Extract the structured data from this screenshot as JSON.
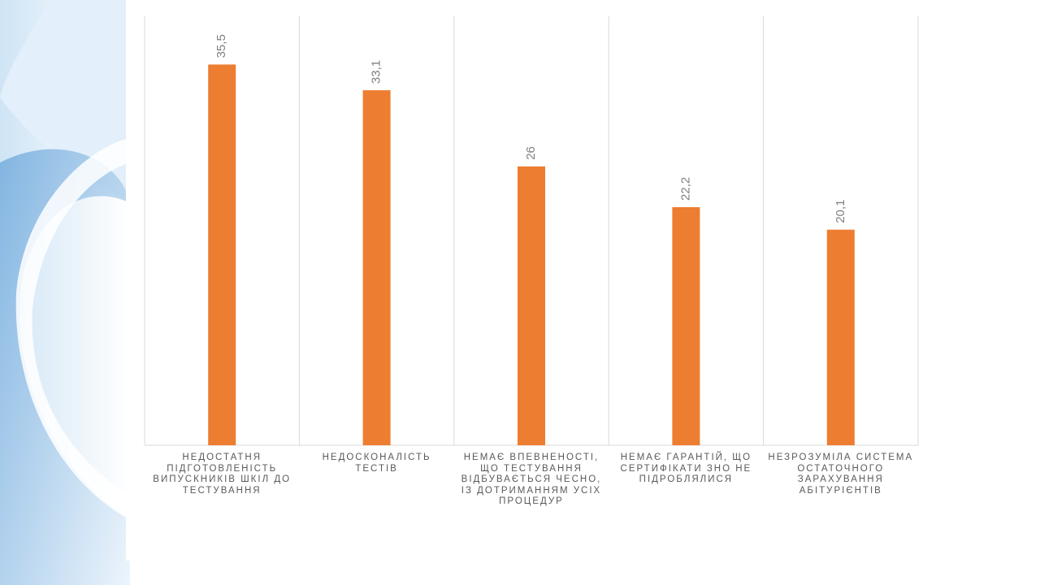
{
  "chart_data": {
    "type": "bar",
    "categories": [
      "НЕДОСТАТНЯ ПІДГОТОВЛЕНІСТЬ ВИПУСКНИКІВ ШКІЛ ДО ТЕСТУВАННЯ",
      "НЕДОСКОНАЛІСТЬ ТЕСТІВ",
      "НЕМАЄ ВПЕВНЕНОСТІ, ЩО ТЕСТУВАННЯ ВІДБУВАЄТЬСЯ ЧЕСНО, ІЗ ДОТРИМАННЯМ УСІХ ПРОЦЕДУР",
      "НЕМАЄ ГАРАНТІЙ, ЩО СЕРТИФІКАТИ ЗНО НЕ ПІДРОБЛЯЛИСЯ",
      "НЕЗРОЗУМІЛА СИСТЕМА ОСТАТОЧНОГО ЗАРАХУВАННЯ АБІТУРІЄНТІВ"
    ],
    "values": [
      35.5,
      33.1,
      26,
      22.2,
      20.1
    ],
    "value_labels": [
      "35,5",
      "33,1",
      "26",
      "22,2",
      "20,1"
    ],
    "color": "#ed7d31",
    "ylim": [
      0,
      40
    ]
  }
}
